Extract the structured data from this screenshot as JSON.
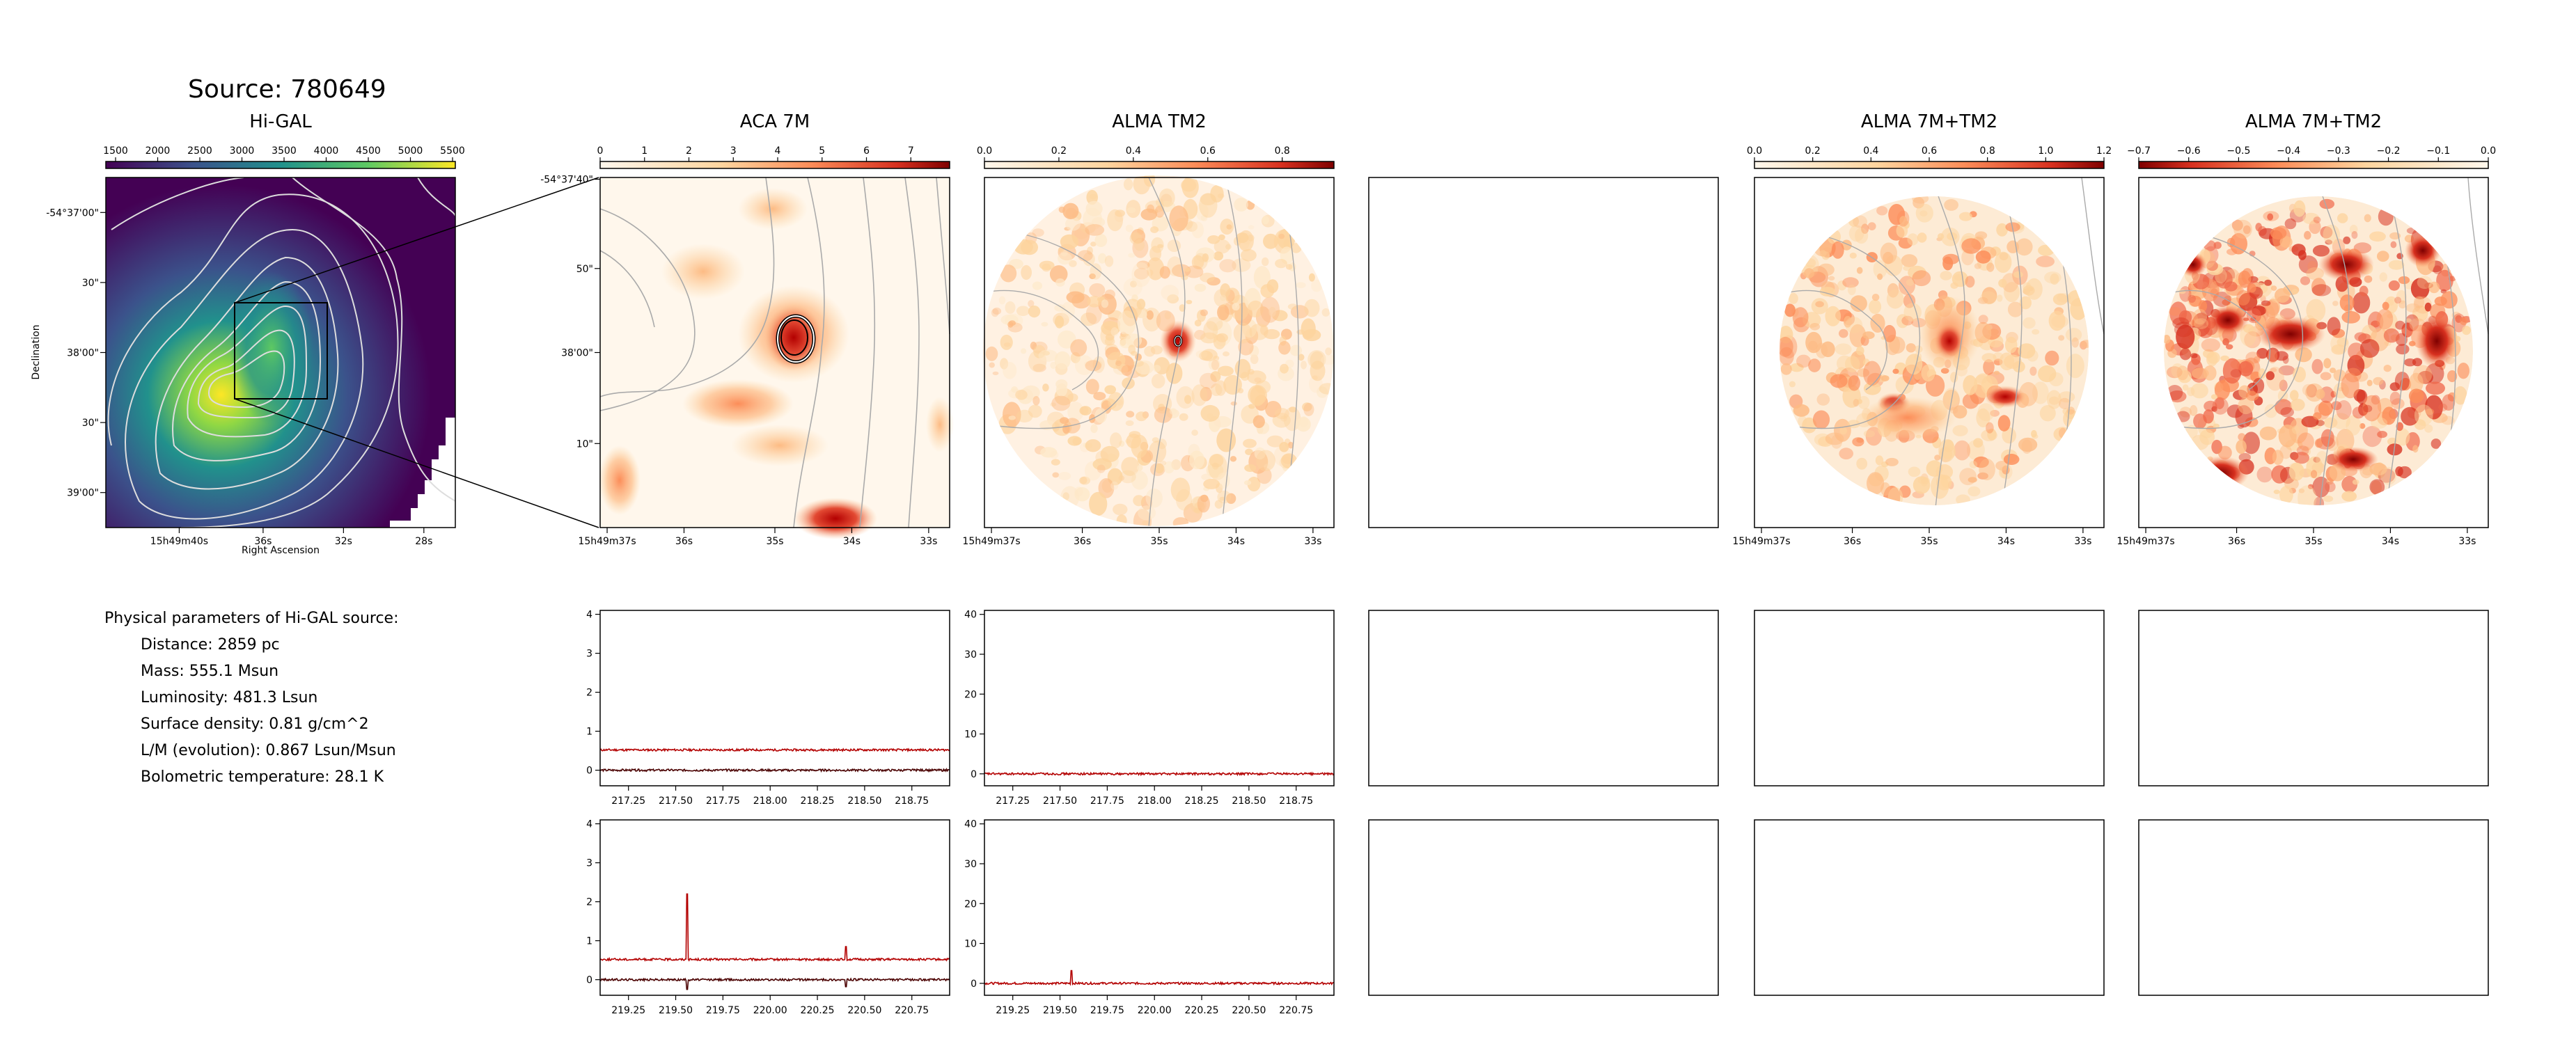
{
  "source_title": "Source: 780649",
  "panels": {
    "higal": {
      "title": "Hi-GAL",
      "cbar_ticks": [
        "1500",
        "2000",
        "2500",
        "3000",
        "3500",
        "4000",
        "4500",
        "5000",
        "5500"
      ],
      "xticks": [
        "15h49m40s",
        "36s",
        "32s",
        "28s"
      ],
      "yticks": [
        "-54°37'00\"",
        "30\"",
        "38'00\"",
        "30\"",
        "39'00\""
      ],
      "xlabel": "Right Ascension",
      "ylabel": "Declination"
    },
    "aca": {
      "title": "ACA 7M",
      "cbar_ticks": [
        "0",
        "1",
        "2",
        "3",
        "4",
        "5",
        "6",
        "7"
      ],
      "xticks": [
        "15h49m37s",
        "36s",
        "35s",
        "34s",
        "33s"
      ],
      "yticks": [
        "-54°37'40\"",
        "50\"",
        "38'00\"",
        "10\""
      ]
    },
    "tm2": {
      "title": "ALMA TM2",
      "cbar_ticks": [
        "0.0",
        "0.2",
        "0.4",
        "0.6",
        "0.8"
      ],
      "xticks": [
        "15h49m37s",
        "36s",
        "35s",
        "34s",
        "33s"
      ]
    },
    "combo": {
      "title": "ALMA 7M+TM2",
      "cbar_ticks": [
        "0.0",
        "0.2",
        "0.4",
        "0.6",
        "0.8",
        "1.0",
        "1.2"
      ],
      "xticks": [
        "15h49m37s",
        "36s",
        "35s",
        "34s",
        "33s"
      ]
    },
    "combo_neg": {
      "title": "ALMA 7M+TM2",
      "cbar_ticks": [
        "−0.7",
        "−0.6",
        "−0.5",
        "−0.4",
        "−0.3",
        "−0.2",
        "−0.1",
        "0.0"
      ],
      "xticks": [
        "15h49m37s",
        "36s",
        "35s",
        "34s",
        "33s"
      ]
    }
  },
  "params": {
    "heading": "Physical parameters of Hi-GAL source:",
    "lines": [
      "Distance: 2859 pc",
      "Mass: 555.1 Msun",
      "Luminosity: 481.3 Lsun",
      "Surface density: 0.81 g/cm^2",
      "L/M (evolution): 0.867 Lsun/Msun",
      "Bolometric temperature: 28.1 K"
    ]
  },
  "chart_data": [
    {
      "type": "line",
      "title": "",
      "xlim": [
        217.1,
        218.95
      ],
      "ylim": [
        -0.4,
        4.1
      ],
      "x_ticks": [
        "217.25",
        "217.50",
        "217.75",
        "218.00",
        "218.25",
        "218.50",
        "218.75"
      ],
      "y_ticks": [
        "0",
        "1",
        "2",
        "3",
        "4"
      ],
      "series": [
        {
          "values_baseline": 0.52
        },
        {
          "values_baseline": 0.0
        }
      ]
    },
    {
      "type": "line",
      "title": "",
      "xlim": [
        217.1,
        218.95
      ],
      "ylim": [
        -3,
        41
      ],
      "x_ticks": [
        "217.25",
        "217.50",
        "217.75",
        "218.00",
        "218.25",
        "218.50",
        "218.75"
      ],
      "y_ticks": [
        "0",
        "10",
        "20",
        "30",
        "40"
      ],
      "series": [
        {
          "values_baseline": 0.0
        }
      ]
    },
    {
      "type": "line",
      "title": "",
      "xlim": [
        219.1,
        220.95
      ],
      "ylim": [
        -0.4,
        4.1
      ],
      "x_ticks": [
        "219.25",
        "219.50",
        "219.75",
        "220.00",
        "220.25",
        "220.50",
        "220.75"
      ],
      "y_ticks": [
        "0",
        "1",
        "2",
        "3",
        "4"
      ],
      "series": [
        {
          "values_baseline": 0.52,
          "peaks": [
            {
              "x": 219.56,
              "y": 2.2
            },
            {
              "x": 220.4,
              "y": 0.85
            }
          ]
        },
        {
          "values_baseline": 0.0,
          "peaks": [
            {
              "x": 219.56,
              "y": -0.25
            },
            {
              "x": 220.4,
              "y": -0.18
            }
          ]
        }
      ]
    },
    {
      "type": "line",
      "title": "",
      "xlim": [
        219.1,
        220.95
      ],
      "ylim": [
        -3,
        41
      ],
      "x_ticks": [
        "219.25",
        "219.50",
        "219.75",
        "220.00",
        "220.25",
        "220.50",
        "220.75"
      ],
      "y_ticks": [
        "0",
        "10",
        "20",
        "30",
        "40"
      ],
      "series": [
        {
          "values_baseline": 0.0,
          "peaks": [
            {
              "x": 219.56,
              "y": 3.2
            }
          ]
        }
      ]
    }
  ]
}
